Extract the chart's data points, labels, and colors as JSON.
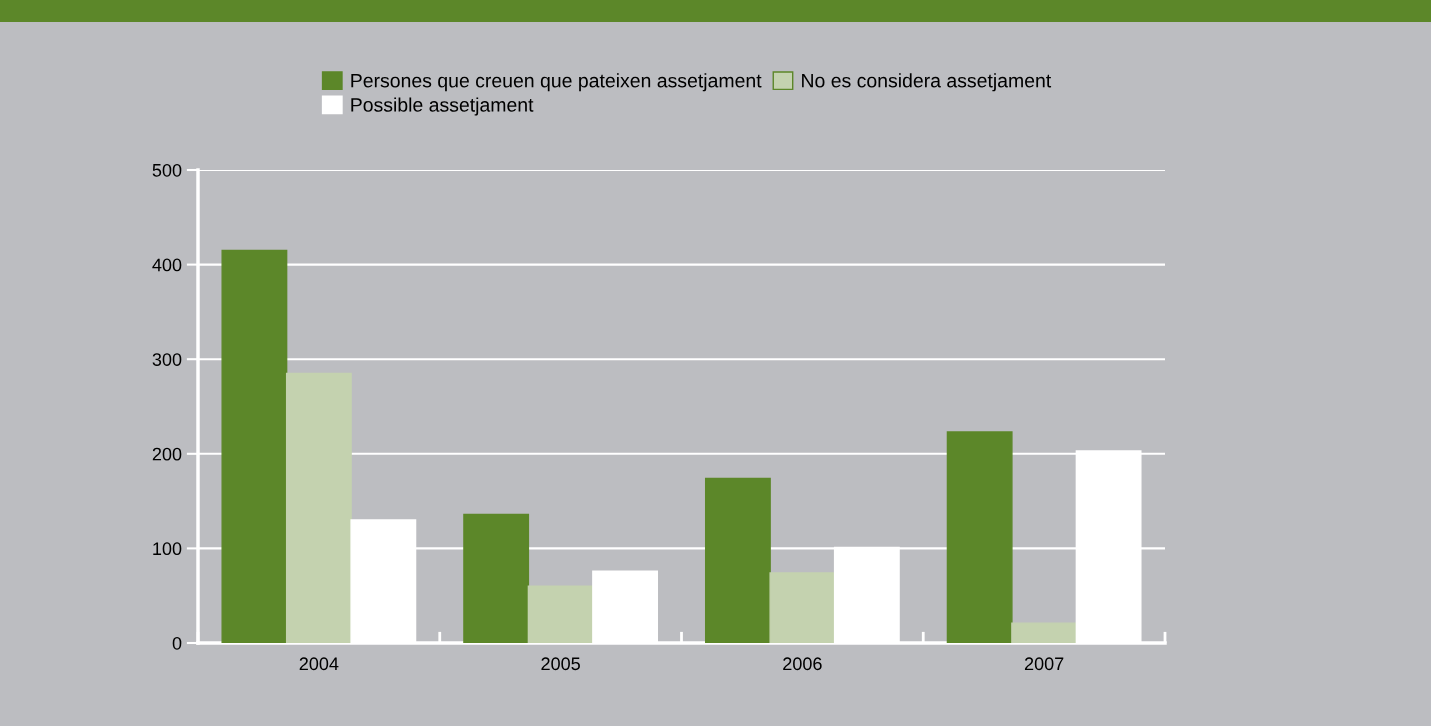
{
  "chart_data": {
    "type": "bar",
    "categories": [
      "2004",
      "2005",
      "2006",
      "2007"
    ],
    "series": [
      {
        "name": "Persones que creuen que pateixen assetjament",
        "color": "#5c8729",
        "values": [
          415,
          136,
          174,
          223
        ]
      },
      {
        "name": "No es considera assetjament",
        "color": "#c4d2af",
        "values": [
          285,
          60,
          74,
          21
        ]
      },
      {
        "name": "Possible assetjament",
        "color": "#ffffff",
        "values": [
          130,
          76,
          101,
          203
        ]
      }
    ],
    "ylim": [
      0,
      500
    ],
    "yticks": [
      0,
      100,
      200,
      300,
      400,
      500
    ],
    "grid": "y",
    "legend": "top"
  }
}
